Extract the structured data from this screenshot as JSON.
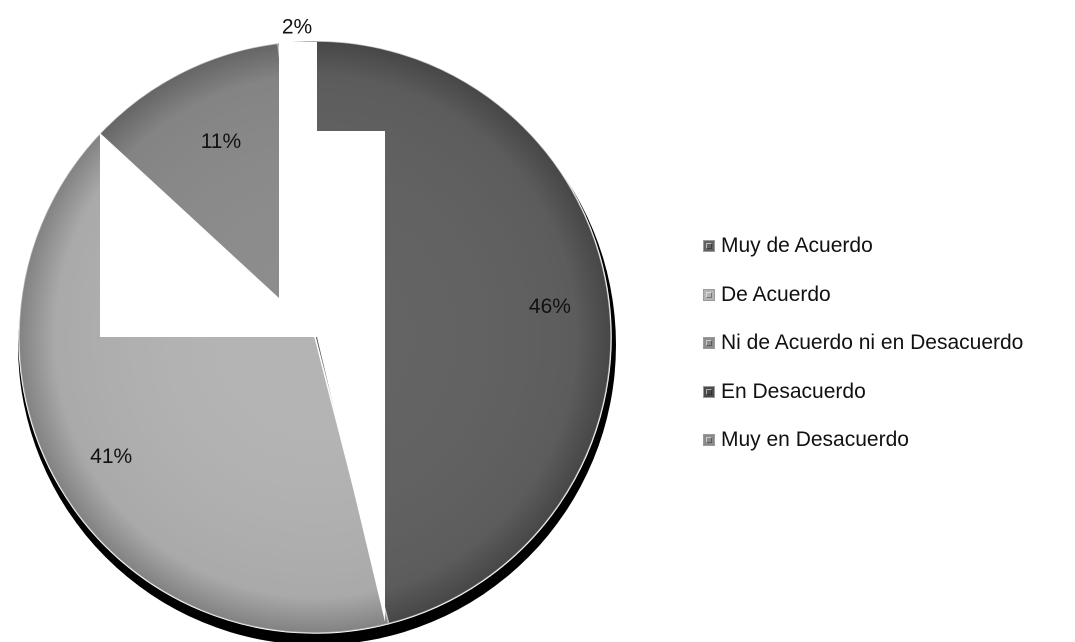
{
  "chart_data": {
    "type": "pie",
    "title": "",
    "categories": [
      "Muy de Acuerdo",
      "De Acuerdo",
      "Ni de Acuerdo ni en Desacuerdo",
      "En Desacuerdo",
      "Muy en Desacuerdo"
    ],
    "values": [
      46,
      41,
      11,
      2,
      0
    ],
    "data_labels": [
      "46%",
      "41%",
      "11%",
      "2%",
      ""
    ],
    "colors": [
      "#626262",
      "#b4b4b4",
      "#8c8c8c",
      "#4a4a4a",
      "#8a8a8a"
    ],
    "legend_position": "right"
  }
}
